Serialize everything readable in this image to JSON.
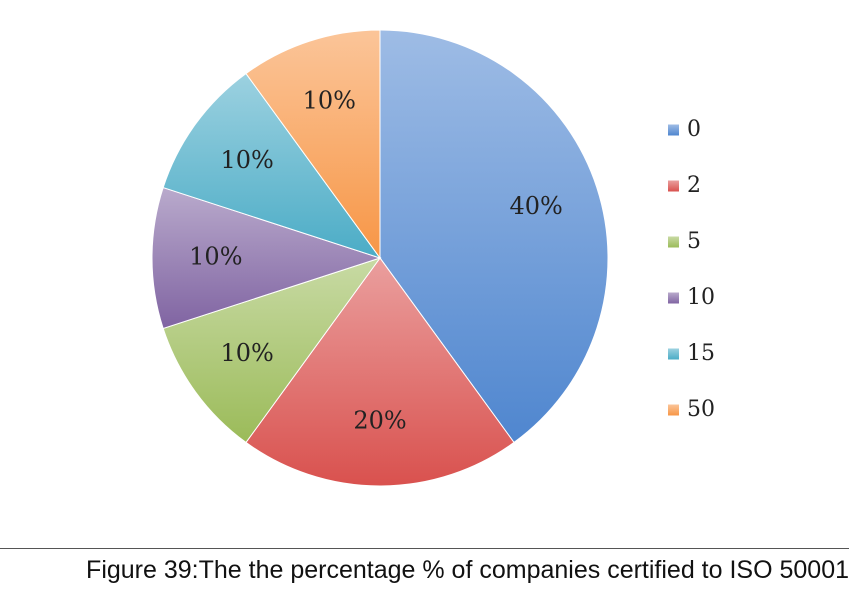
{
  "chart_data": {
    "type": "pie",
    "title": "",
    "slices": [
      {
        "label": "0",
        "value": 40,
        "display": "40%",
        "color": "#4f86cf"
      },
      {
        "label": "2",
        "value": 20,
        "display": "20%",
        "color": "#d9514e"
      },
      {
        "label": "5",
        "value": 10,
        "display": "10%",
        "color": "#9bbb59"
      },
      {
        "label": "10",
        "value": 10,
        "display": "10%",
        "color": "#8064a2"
      },
      {
        "label": "15",
        "value": 10,
        "display": "10%",
        "color": "#4bacc6"
      },
      {
        "label": "50",
        "value": 10,
        "display": "10%",
        "color": "#f79646"
      }
    ],
    "legend_position": "right",
    "start_angle_deg": 0,
    "direction": "clockwise"
  },
  "caption": "Figure 39:The the percentage % of companies certified to ISO 50001"
}
